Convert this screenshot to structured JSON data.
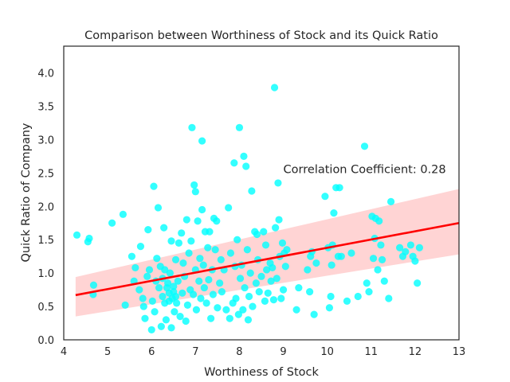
{
  "chart_data": {
    "type": "scatter",
    "title": "Comparison between Worthiness of Stock and its Quick Ratio",
    "xlabel": "Worthiness of Stock",
    "ylabel": "Quick Ratio of Company",
    "xlim": [
      4,
      13
    ],
    "ylim": [
      0,
      4.4
    ],
    "xticks": [
      4,
      5,
      6,
      7,
      8,
      9,
      10,
      11,
      12,
      13
    ],
    "xtick_labels": [
      "4",
      "5",
      "6",
      "7",
      "8",
      "9",
      "10",
      "11",
      "12",
      "13"
    ],
    "yticks": [
      0,
      0.5,
      1,
      1.5,
      2,
      2.5,
      3,
      3.5,
      4
    ],
    "ytick_labels": [
      "0.0",
      "0.5",
      "1.0",
      "1.5",
      "2.0",
      "2.5",
      "3.0",
      "3.5",
      "4.0"
    ],
    "grid": false,
    "annotation": {
      "text": "Correlation Coefficient: 0.28",
      "x": 9.0,
      "y": 2.5
    },
    "colors": {
      "points": "#00ffff",
      "regression_line": "#ff0000",
      "confidence_band": "#ffcccc",
      "frame": "#262626"
    },
    "regression": {
      "x": [
        4.27,
        13.0
      ],
      "y": [
        0.67,
        1.75
      ],
      "ci_lower": [
        0.35,
        1.28
      ],
      "ci_upper": [
        0.94,
        2.26
      ]
    },
    "points": [
      [
        4.3,
        1.57
      ],
      [
        4.55,
        1.47
      ],
      [
        4.58,
        1.52
      ],
      [
        4.68,
        0.82
      ],
      [
        4.67,
        0.68
      ],
      [
        5.1,
        1.75
      ],
      [
        5.35,
        1.88
      ],
      [
        5.4,
        0.52
      ],
      [
        5.55,
        1.25
      ],
      [
        5.6,
        0.88
      ],
      [
        5.63,
        1.08
      ],
      [
        5.72,
        0.75
      ],
      [
        5.75,
        1.4
      ],
      [
        5.8,
        0.62
      ],
      [
        5.82,
        0.5
      ],
      [
        5.85,
        0.32
      ],
      [
        5.9,
        0.95
      ],
      [
        5.92,
        1.65
      ],
      [
        5.95,
        1.05
      ],
      [
        6.0,
        0.15
      ],
      [
        6.02,
        0.58
      ],
      [
        6.05,
        2.3
      ],
      [
        6.07,
        0.42
      ],
      [
        6.1,
        0.88
      ],
      [
        6.12,
        1.22
      ],
      [
        6.15,
        1.98
      ],
      [
        6.17,
        0.78
      ],
      [
        6.2,
        1.1
      ],
      [
        6.22,
        0.2
      ],
      [
        6.25,
        0.65
      ],
      [
        6.25,
        0.92
      ],
      [
        6.28,
        1.68
      ],
      [
        6.3,
        0.55
      ],
      [
        6.3,
        1.05
      ],
      [
        6.33,
        0.3
      ],
      [
        6.35,
        0.78
      ],
      [
        6.37,
        0.85
      ],
      [
        6.4,
        0.58
      ],
      [
        6.4,
        0.7
      ],
      [
        6.42,
        1.0
      ],
      [
        6.45,
        0.18
      ],
      [
        6.45,
        1.48
      ],
      [
        6.47,
        0.62
      ],
      [
        6.5,
        0.72
      ],
      [
        6.5,
        0.8
      ],
      [
        6.52,
        0.42
      ],
      [
        6.55,
        1.2
      ],
      [
        6.55,
        0.65
      ],
      [
        6.57,
        0.55
      ],
      [
        6.6,
        0.88
      ],
      [
        6.62,
        1.45
      ],
      [
        6.65,
        0.35
      ],
      [
        6.68,
        1.6
      ],
      [
        6.7,
        0.7
      ],
      [
        6.72,
        1.15
      ],
      [
        6.75,
        0.95
      ],
      [
        6.78,
        0.28
      ],
      [
        6.8,
        1.8
      ],
      [
        6.82,
        0.52
      ],
      [
        6.85,
        1.3
      ],
      [
        6.88,
        0.75
      ],
      [
        6.9,
        1.48
      ],
      [
        6.92,
        3.18
      ],
      [
        6.95,
        0.68
      ],
      [
        6.97,
        2.32
      ],
      [
        7.0,
        1.05
      ],
      [
        7.0,
        2.22
      ],
      [
        7.02,
        0.45
      ],
      [
        7.05,
        1.78
      ],
      [
        7.08,
        0.88
      ],
      [
        7.1,
        1.22
      ],
      [
        7.12,
        0.62
      ],
      [
        7.15,
        2.98
      ],
      [
        7.15,
        1.95
      ],
      [
        7.18,
        1.12
      ],
      [
        7.2,
        0.78
      ],
      [
        7.22,
        1.62
      ],
      [
        7.25,
        0.55
      ],
      [
        7.28,
        1.38
      ],
      [
        7.3,
        0.9
      ],
      [
        7.32,
        1.62
      ],
      [
        7.35,
        0.32
      ],
      [
        7.38,
        1.05
      ],
      [
        7.4,
        0.68
      ],
      [
        7.42,
        1.82
      ],
      [
        7.45,
        1.35
      ],
      [
        7.48,
        1.78
      ],
      [
        7.5,
        0.48
      ],
      [
        7.55,
        0.85
      ],
      [
        7.58,
        1.2
      ],
      [
        7.6,
        0.72
      ],
      [
        7.65,
        1.05
      ],
      [
        7.7,
        0.45
      ],
      [
        7.75,
        1.98
      ],
      [
        7.78,
        0.32
      ],
      [
        7.8,
        1.3
      ],
      [
        7.85,
        0.55
      ],
      [
        7.88,
        2.65
      ],
      [
        7.9,
        1.1
      ],
      [
        7.92,
        0.62
      ],
      [
        7.95,
        1.5
      ],
      [
        7.98,
        0.38
      ],
      [
        8.0,
        3.18
      ],
      [
        8.02,
        0.92
      ],
      [
        8.05,
        1.12
      ],
      [
        8.08,
        0.45
      ],
      [
        8.1,
        2.75
      ],
      [
        8.12,
        0.78
      ],
      [
        8.15,
        2.6
      ],
      [
        8.18,
        1.35
      ],
      [
        8.2,
        0.3
      ],
      [
        8.22,
        0.65
      ],
      [
        8.25,
        1.0
      ],
      [
        8.28,
        2.23
      ],
      [
        8.3,
        0.5
      ],
      [
        8.35,
        1.62
      ],
      [
        8.38,
        0.85
      ],
      [
        8.4,
        1.58
      ],
      [
        8.42,
        1.2
      ],
      [
        8.45,
        0.72
      ],
      [
        8.5,
        0.95
      ],
      [
        8.55,
        1.62
      ],
      [
        8.58,
        0.58
      ],
      [
        8.6,
        1.42
      ],
      [
        8.62,
        1.05
      ],
      [
        8.65,
        0.7
      ],
      [
        8.7,
        1.15
      ],
      [
        8.72,
        0.88
      ],
      [
        8.75,
        1.08
      ],
      [
        8.78,
        0.6
      ],
      [
        8.8,
        3.78
      ],
      [
        8.82,
        1.68
      ],
      [
        8.85,
        0.92
      ],
      [
        8.88,
        2.35
      ],
      [
        8.9,
        1.8
      ],
      [
        8.92,
        1.25
      ],
      [
        8.95,
        0.62
      ],
      [
        8.98,
        1.45
      ],
      [
        9.0,
        0.75
      ],
      [
        9.02,
        1.3
      ],
      [
        9.05,
        1.1
      ],
      [
        9.08,
        1.35
      ],
      [
        9.3,
        0.45
      ],
      [
        9.35,
        0.78
      ],
      [
        9.55,
        1.05
      ],
      [
        9.6,
        0.72
      ],
      [
        9.62,
        1.25
      ],
      [
        9.65,
        1.32
      ],
      [
        9.7,
        0.38
      ],
      [
        9.75,
        1.15
      ],
      [
        9.95,
        2.15
      ],
      [
        10.02,
        1.38
      ],
      [
        10.05,
        0.48
      ],
      [
        10.08,
        0.65
      ],
      [
        10.1,
        1.12
      ],
      [
        10.12,
        1.42
      ],
      [
        10.15,
        1.9
      ],
      [
        10.2,
        2.28
      ],
      [
        10.25,
        1.25
      ],
      [
        10.28,
        2.28
      ],
      [
        10.32,
        1.25
      ],
      [
        10.45,
        0.58
      ],
      [
        10.55,
        1.3
      ],
      [
        10.7,
        0.65
      ],
      [
        10.85,
        2.9
      ],
      [
        10.9,
        0.85
      ],
      [
        10.95,
        0.72
      ],
      [
        11.02,
        1.85
      ],
      [
        11.05,
        1.22
      ],
      [
        11.08,
        1.52
      ],
      [
        11.1,
        1.82
      ],
      [
        11.15,
        1.05
      ],
      [
        11.18,
        1.78
      ],
      [
        11.22,
        1.42
      ],
      [
        11.25,
        1.2
      ],
      [
        11.3,
        0.88
      ],
      [
        11.4,
        0.62
      ],
      [
        11.45,
        2.07
      ],
      [
        11.65,
        1.38
      ],
      [
        11.72,
        1.25
      ],
      [
        11.78,
        1.32
      ],
      [
        11.9,
        1.42
      ],
      [
        11.95,
        1.25
      ],
      [
        12.0,
        1.18
      ],
      [
        12.05,
        0.85
      ],
      [
        12.1,
        1.38
      ]
    ]
  }
}
